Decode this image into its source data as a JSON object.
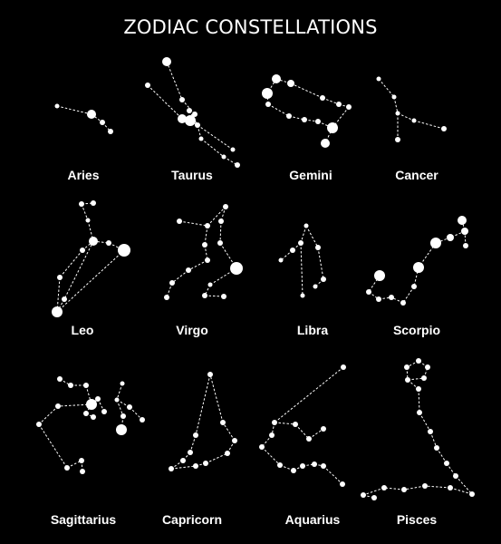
{
  "title": "ZODIAC CONSTELLATIONS",
  "colors": {
    "background": "#000000",
    "star": "#ffffff"
  },
  "constellations": [
    {
      "id": "aries",
      "name": "Aries"
    },
    {
      "id": "taurus",
      "name": "Taurus"
    },
    {
      "id": "gemini",
      "name": "Gemini"
    },
    {
      "id": "cancer",
      "name": "Cancer"
    },
    {
      "id": "leo",
      "name": "Leo"
    },
    {
      "id": "virgo",
      "name": "Virgo"
    },
    {
      "id": "libra",
      "name": "Libra"
    },
    {
      "id": "scorpio",
      "name": "Scorpio"
    },
    {
      "id": "sagittarius",
      "name": "Sagittarius"
    },
    {
      "id": "capricorn",
      "name": "Capricorn"
    },
    {
      "id": "aquarius",
      "name": "Aquarius"
    },
    {
      "id": "pisces",
      "name": "Pisces"
    }
  ]
}
